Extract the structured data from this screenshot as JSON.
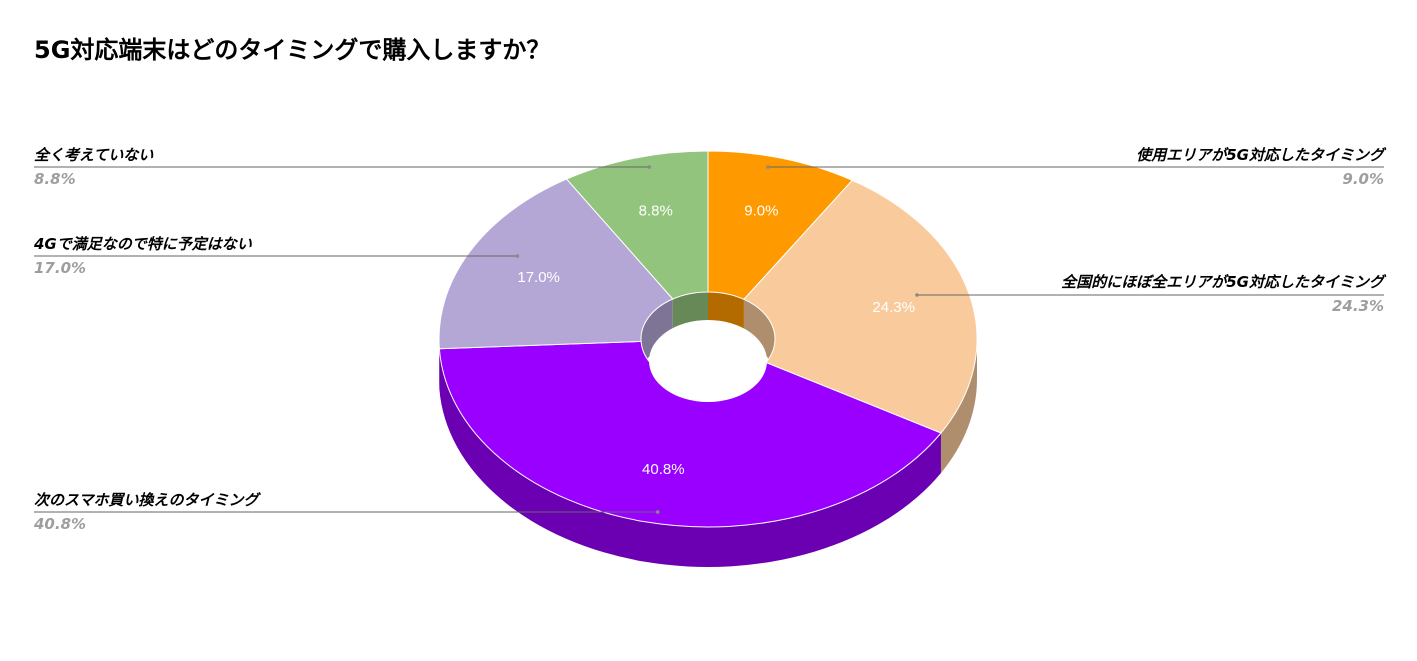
{
  "chart_data": {
    "type": "pie",
    "title": "5G対応端末はどのタイミングで購入しますか？",
    "slices": [
      {
        "label": "使用エリアが5G対応したタイミング",
        "value": 9.0,
        "display": "9.0%",
        "color": "#ff9900",
        "side_color": "#b36b00"
      },
      {
        "label": "全国的にほぼ全エリアが5G対応したタイミング",
        "value": 24.3,
        "display": "24.3%",
        "color": "#f9cb9c",
        "side_color": "#ae8e6d"
      },
      {
        "label": "次のスマホ買い換えのタイミング",
        "value": 40.8,
        "display": "40.8%",
        "color": "#9900ff",
        "side_color": "#6b00b3"
      },
      {
        "label": "4Gで満足なので特に予定はない",
        "value": 17.0,
        "display": "17.0%",
        "color": "#b4a7d6",
        "side_color": "#7e7596"
      },
      {
        "label": "全く考えていない",
        "value": 8.8,
        "display": "8.8%",
        "color": "#93c47d",
        "side_color": "#678957"
      }
    ],
    "legend_placement": "callouts on both sides",
    "style": "3d-donut"
  }
}
